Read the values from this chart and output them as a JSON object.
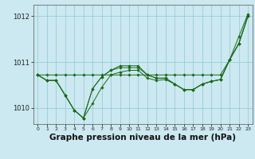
{
  "bg_color": "#cce8f0",
  "grid_color": "#8ec8d8",
  "line_color": "#1a6b1a",
  "marker_color": "#1a6b1a",
  "xlabel": "Graphe pression niveau de la mer (hPa)",
  "xlabel_fontsize": 7.5,
  "xlim": [
    -0.5,
    23.5
  ],
  "ylim": [
    1009.65,
    1012.25
  ],
  "yticks": [
    1010,
    1011,
    1012
  ],
  "xticks": [
    0,
    1,
    2,
    3,
    4,
    5,
    6,
    7,
    8,
    9,
    10,
    11,
    12,
    13,
    14,
    15,
    16,
    17,
    18,
    19,
    20,
    21,
    22,
    23
  ],
  "series": [
    [
      1010.72,
      1010.72,
      1010.72,
      1010.72,
      1010.72,
      1010.72,
      1010.72,
      1010.72,
      1010.72,
      1010.72,
      1010.72,
      1010.72,
      1010.72,
      1010.72,
      1010.72,
      1010.72,
      1010.72,
      1010.72,
      1010.72,
      1010.72,
      1010.72,
      1011.05,
      1011.55,
      1012.05
    ],
    [
      1010.72,
      1010.6,
      1010.6,
      1010.28,
      1009.95,
      1009.78,
      1010.1,
      1010.45,
      1010.72,
      1010.78,
      1010.82,
      1010.82,
      1010.65,
      1010.6,
      1010.62,
      1010.52,
      1010.4,
      1010.4,
      1010.52,
      1010.58,
      1010.62,
      1011.05,
      1011.4,
      1012.0
    ],
    [
      1010.72,
      1010.6,
      1010.6,
      1010.28,
      1009.95,
      1009.78,
      1010.42,
      1010.68,
      1010.82,
      1010.88,
      1010.88,
      1010.88,
      1010.72,
      1010.65,
      1010.65,
      1010.52,
      1010.4,
      1010.4,
      1010.52,
      1010.58,
      1010.62,
      1011.05,
      1011.4,
      1012.0
    ],
    [
      1010.72,
      1010.6,
      1010.6,
      1010.28,
      1009.95,
      1009.78,
      1010.42,
      1010.68,
      1010.82,
      1010.92,
      1010.92,
      1010.92,
      1010.72,
      1010.65,
      1010.65,
      1010.52,
      1010.4,
      1010.4,
      1010.52,
      1010.58,
      1010.62,
      1011.05,
      1011.4,
      1012.0
    ]
  ]
}
